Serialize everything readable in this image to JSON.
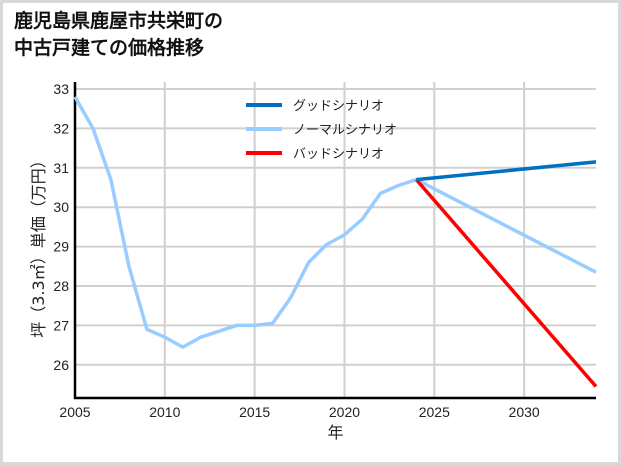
{
  "title_lines": [
    "鹿児島県鹿屋市共栄町の",
    "中古戸建ての価格推移"
  ],
  "chart_data": {
    "type": "line",
    "title": "鹿児島県鹿屋市共栄町の中古戸建ての価格推移",
    "xlabel": "年",
    "ylabel": "坪（3.3㎡）単価（万円）",
    "xlim": [
      2005,
      2034
    ],
    "ylim": [
      25.15,
      33.1
    ],
    "xticks": [
      2005,
      2010,
      2015,
      2020,
      2025,
      2030
    ],
    "yticks": [
      26,
      27,
      28,
      29,
      30,
      31,
      32,
      33
    ],
    "grid": true,
    "legend_position": "upper center",
    "series": [
      {
        "name": "グッドシナリオ",
        "color": "#0070c0",
        "x": [
          2024,
          2034
        ],
        "values": [
          30.7,
          31.15
        ]
      },
      {
        "name": "ノーマルシナリオ",
        "color": "#99ccff",
        "x": [
          2005,
          2006,
          2007,
          2008,
          2009,
          2010,
          2011,
          2012,
          2013,
          2014,
          2015,
          2016,
          2017,
          2018,
          2019,
          2020,
          2021,
          2022,
          2023,
          2024,
          2034
        ],
        "values": [
          32.8,
          32.0,
          30.7,
          28.5,
          26.9,
          26.7,
          26.45,
          26.7,
          26.85,
          27.0,
          27.0,
          27.05,
          27.7,
          28.6,
          29.05,
          29.3,
          29.7,
          30.35,
          30.55,
          30.7,
          28.35
        ]
      },
      {
        "name": "バッドシナリオ",
        "color": "#ff0000",
        "x": [
          2024,
          2034
        ],
        "values": [
          30.7,
          25.45
        ]
      }
    ]
  },
  "legend": [
    {
      "label": "グッドシナリオ",
      "color": "#0070c0"
    },
    {
      "label": "ノーマルシナリオ",
      "color": "#99ccff"
    },
    {
      "label": "バッドシナリオ",
      "color": "#ff0000"
    }
  ]
}
